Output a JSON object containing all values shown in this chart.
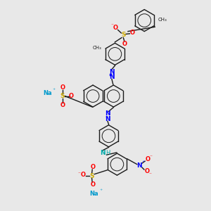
{
  "bg_color": "#e8e8e8",
  "bond_color": "#1a1a1a",
  "n_color": "#0000ff",
  "o_color": "#ff0000",
  "s_color": "#ccaa00",
  "na_color": "#0099cc",
  "h_color": "#00aaaa",
  "figsize": [
    3.0,
    3.0
  ],
  "dpi": 100,
  "xlim": [
    0,
    10
  ],
  "ylim": [
    0,
    10
  ]
}
